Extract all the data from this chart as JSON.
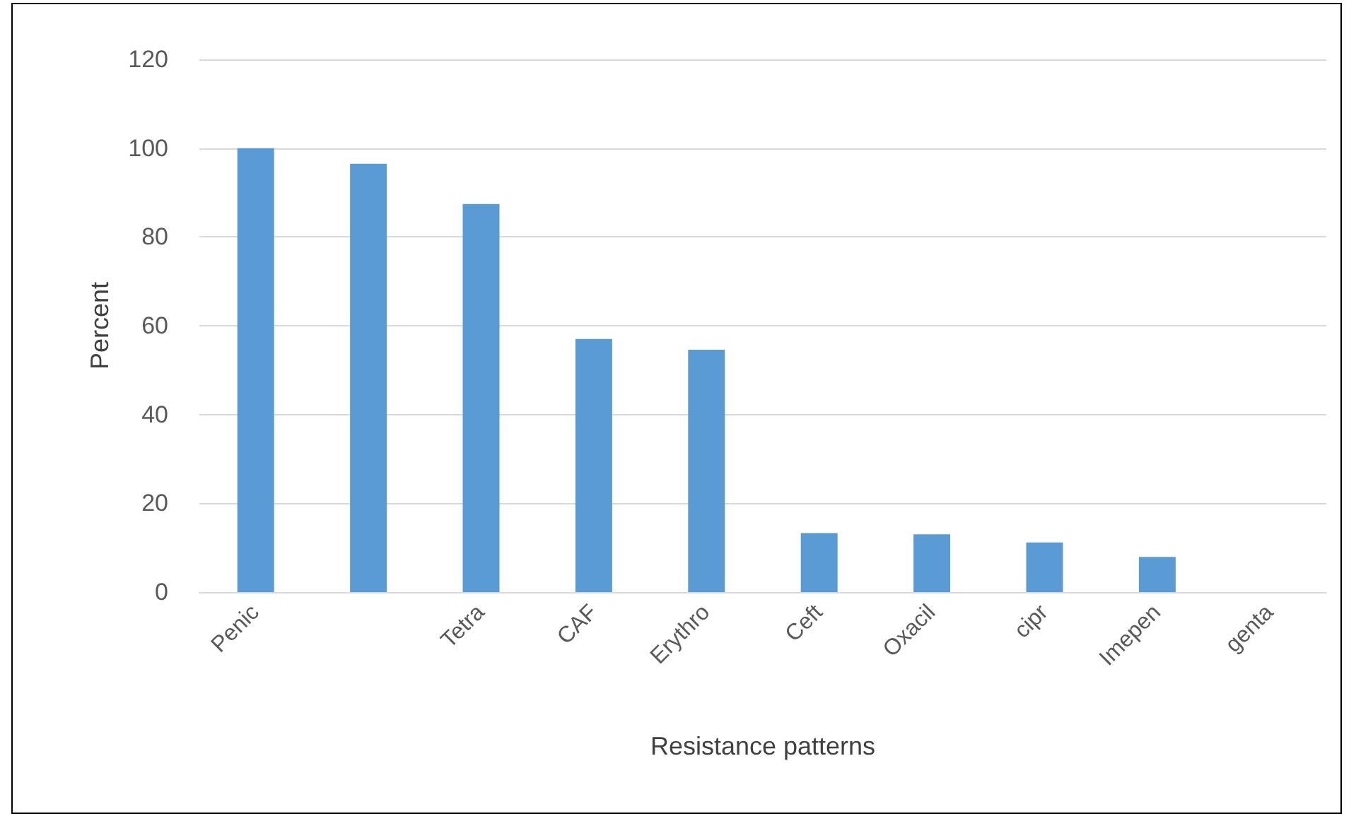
{
  "chart_data": {
    "type": "bar",
    "xlabel": "Resistance patterns",
    "ylabel": "Percent",
    "categories": [
      "Penic",
      null,
      "Tetra",
      "CAF",
      "Erythro",
      "Ceft",
      "Oxacil",
      "cipr",
      "Imepen",
      "genta"
    ],
    "values": [
      100,
      96.5,
      87.4,
      57,
      54.6,
      13.3,
      13,
      11.2,
      7.9,
      0
    ],
    "color": "#5b9bd5",
    "ylim": [
      0,
      120
    ],
    "yticks": [
      0,
      20,
      40,
      60,
      80,
      100,
      120
    ],
    "grid": "y"
  }
}
